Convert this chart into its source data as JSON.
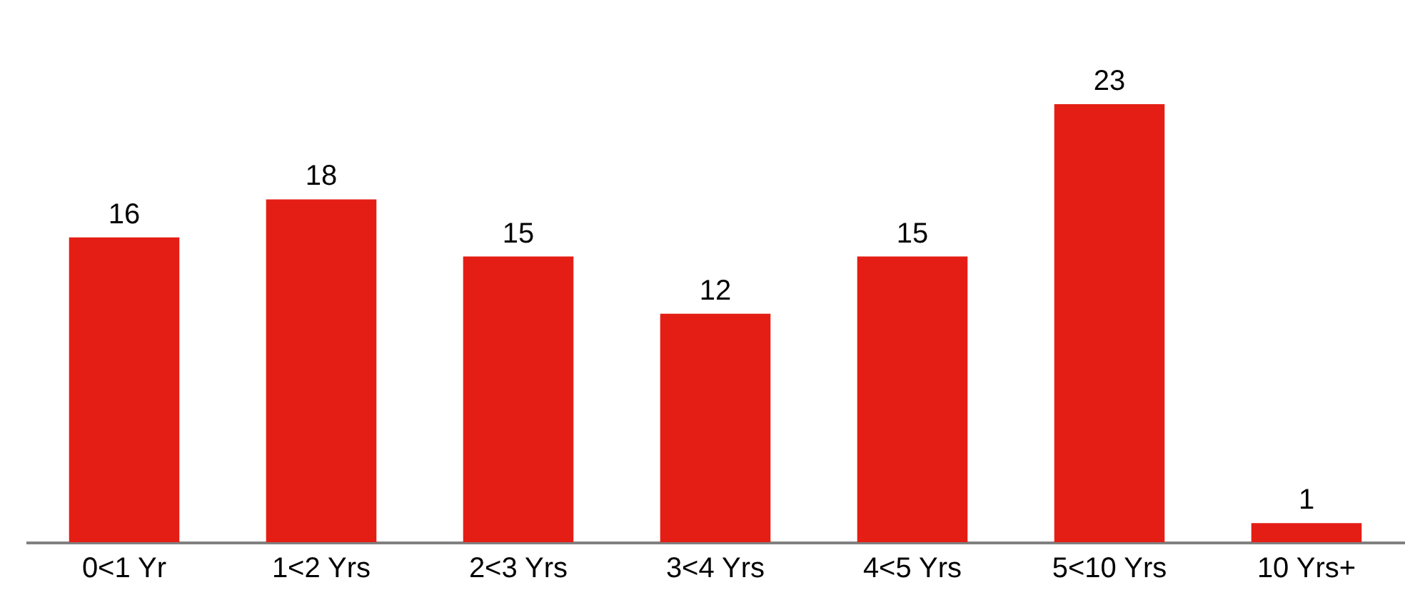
{
  "chart_data": {
    "type": "bar",
    "categories": [
      "0<1 Yr",
      "1<2 Yrs",
      "2<3 Yrs",
      "3<4 Yrs",
      "4<5 Yrs",
      "5<10 Yrs",
      "10 Yrs+"
    ],
    "values": [
      16,
      18,
      15,
      12,
      15,
      23,
      1
    ],
    "color": "#e41e15",
    "data_labels": true,
    "grid": false
  }
}
